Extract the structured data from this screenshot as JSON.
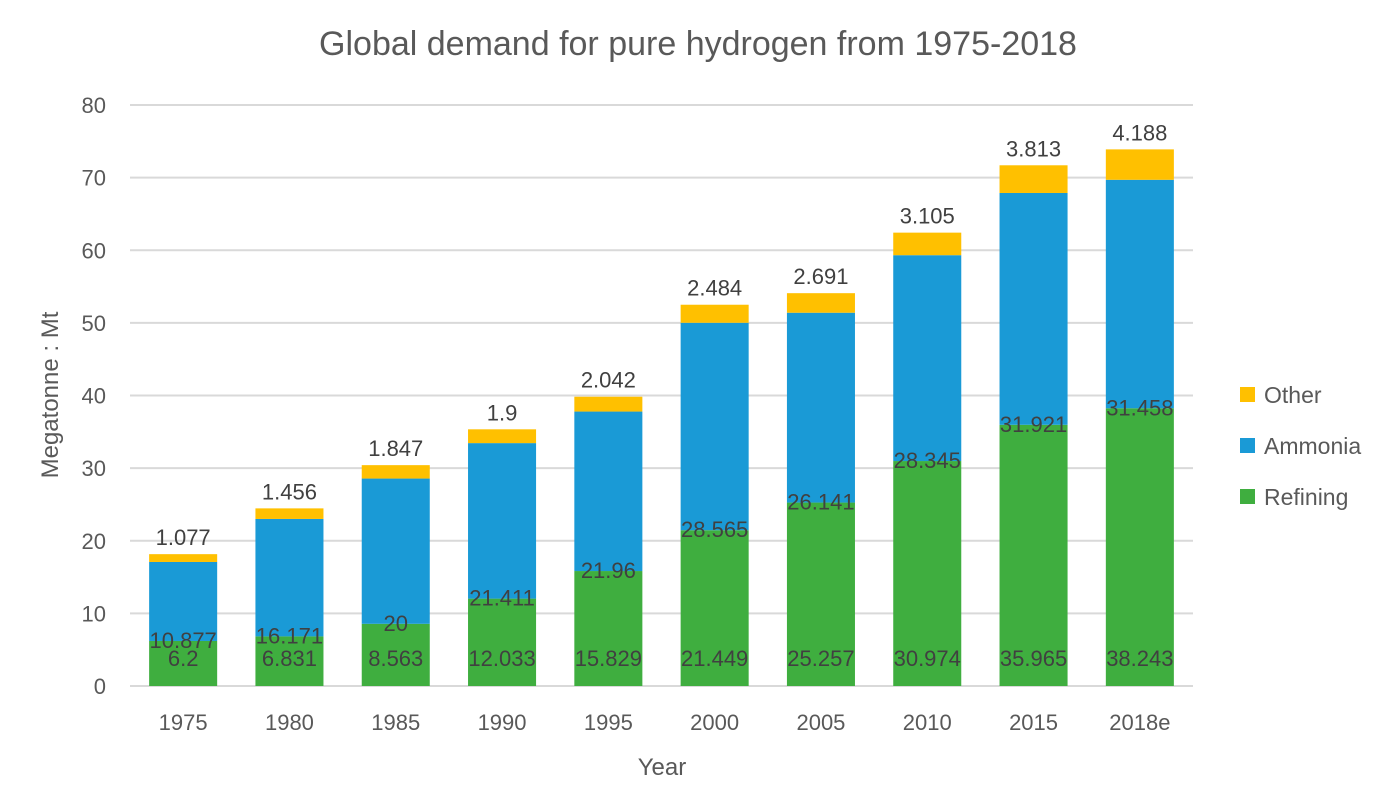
{
  "chart_data": {
    "type": "bar",
    "stacked": true,
    "title": "Global demand for pure hydrogen from 1975-2018",
    "xlabel": "Year",
    "ylabel": "Megatonne : Mt",
    "ylim": [
      0,
      80
    ],
    "yticks": [
      0,
      10,
      20,
      30,
      40,
      50,
      60,
      70,
      80
    ],
    "grid": true,
    "legend_position": "right",
    "categories": [
      "1975",
      "1980",
      "1985",
      "1990",
      "1995",
      "2000",
      "2005",
      "2010",
      "2015",
      "2018e"
    ],
    "series": [
      {
        "name": "Refining",
        "color": "#3fae3f",
        "values": [
          6.2,
          6.831,
          8.563,
          12.033,
          15.829,
          21.449,
          25.257,
          30.974,
          35.965,
          38.243
        ],
        "labels": [
          "6.2",
          "6.831",
          "8.563",
          "12.033",
          "15.829",
          "21.449",
          "25.257",
          "30.974",
          "35.965",
          "38.243"
        ]
      },
      {
        "name": "Ammonia",
        "color": "#1a9ad6",
        "values": [
          10.877,
          16.171,
          20,
          21.411,
          21.96,
          28.565,
          26.141,
          28.345,
          31.921,
          31.458
        ],
        "labels": [
          "10.877",
          "16.171",
          "20",
          "21.411",
          "21.96",
          "28.565",
          "26.141",
          "28.345",
          "31.921",
          "31.458"
        ]
      },
      {
        "name": "Other",
        "color": "#ffc000",
        "values": [
          1.077,
          1.456,
          1.847,
          1.9,
          2.042,
          2.484,
          2.691,
          3.105,
          3.813,
          4.188
        ],
        "labels": [
          "1.077",
          "1.456",
          "1.847",
          "1.9",
          "2.042",
          "2.484",
          "2.691",
          "3.105",
          "3.813",
          "4.188"
        ]
      }
    ],
    "legend_order": [
      "Other",
      "Ammonia",
      "Refining"
    ]
  }
}
